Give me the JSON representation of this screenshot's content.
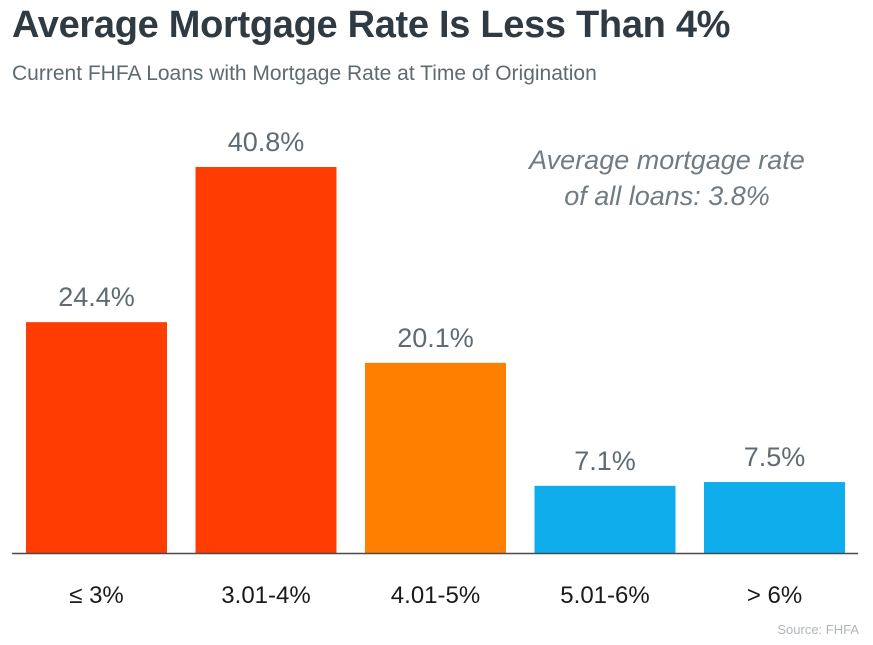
{
  "header": {
    "title": "Average Mortgage Rate Is Less Than 4%",
    "subtitle": "Current FHFA Loans with Mortgage Rate at Time of Origination"
  },
  "annotation": {
    "line1": "Average mortgage rate",
    "line2": "of all loans: 3.8%"
  },
  "source": "Source: FHFA",
  "chart_data": {
    "type": "bar",
    "title": "Average Mortgage Rate Is Less Than 4%",
    "subtitle": "Current FHFA Loans with Mortgage Rate at Time of Origination",
    "categories": [
      "≤ 3%",
      "3.01-4%",
      "4.01-5%",
      "5.01-6%",
      "> 6%"
    ],
    "values": [
      24.4,
      40.8,
      20.1,
      7.1,
      7.5
    ],
    "value_labels": [
      "24.4%",
      "40.8%",
      "20.1%",
      "7.1%",
      "7.5%"
    ],
    "colors": [
      "#ff3d00",
      "#ff3d00",
      "#ff8000",
      "#10aded",
      "#10aded"
    ],
    "xlabel": "",
    "ylabel": "",
    "ylim": [
      0,
      45
    ],
    "grid": false,
    "legend": "none"
  }
}
